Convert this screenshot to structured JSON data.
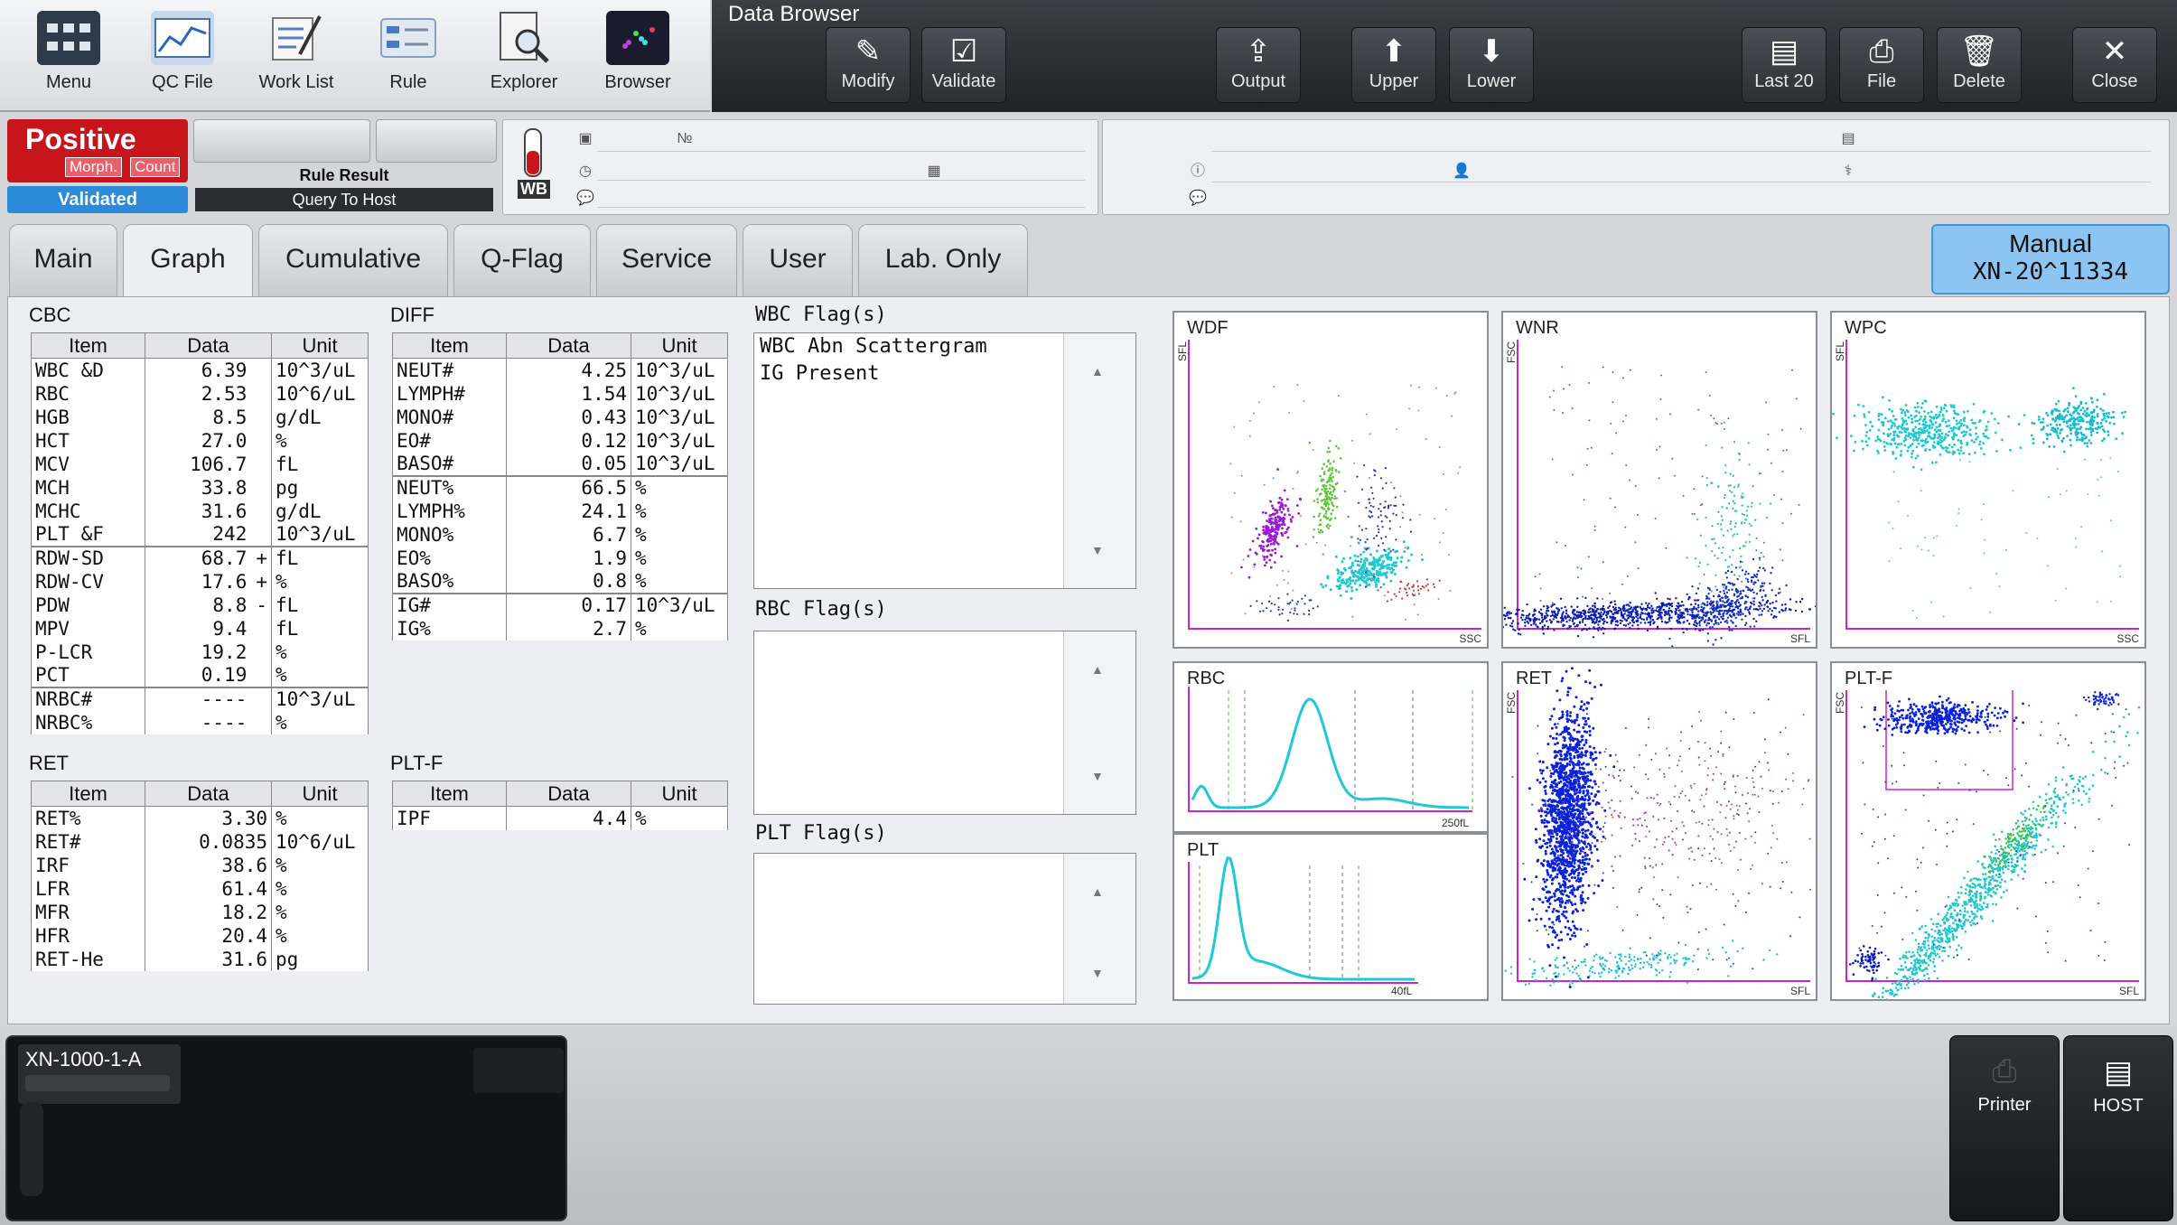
{
  "toolbar": {
    "items": [
      {
        "label": "Menu",
        "icon": "menu-grid-icon"
      },
      {
        "label": "QC File",
        "icon": "qc-chart-icon"
      },
      {
        "label": "Work List",
        "icon": "worklist-pen-icon"
      },
      {
        "label": "Rule",
        "icon": "rule-list-icon"
      },
      {
        "label": "Explorer",
        "icon": "explorer-magnifier-icon"
      },
      {
        "label": "Browser",
        "icon": "browser-scatter-icon"
      }
    ]
  },
  "browser": {
    "title": "Data Browser",
    "buttons": {
      "modify": "Modify",
      "validate": "Validate",
      "output": "Output",
      "upper": "Upper",
      "lower": "Lower",
      "last20": "Last 20",
      "file": "File",
      "delete": "Delete",
      "close": "Close"
    }
  },
  "status": {
    "result": "Positive",
    "morph": "Morph.",
    "count": "Count",
    "validated": "Validated",
    "rule_result": "Rule Result",
    "query_host": "Query To Host",
    "sample_type": "WB"
  },
  "tabs": [
    "Main",
    "Graph",
    "Cumulative",
    "Q-Flag",
    "Service",
    "User",
    "Lab. Only"
  ],
  "mode": {
    "line1": "Manual",
    "line2": "XN-20^11334"
  },
  "cbc": {
    "title": "CBC",
    "headers": [
      "Item",
      "Data",
      "Unit"
    ],
    "rows": [
      {
        "item": "WBC &D",
        "data": "6.39",
        "flag": " ",
        "unit": "10^3/uL"
      },
      {
        "item": "RBC",
        "data": "2.53",
        "flag": " ",
        "unit": "10^6/uL"
      },
      {
        "item": "HGB",
        "data": "8.5",
        "flag": " ",
        "unit": "g/dL"
      },
      {
        "item": "HCT",
        "data": "27.0",
        "flag": " ",
        "unit": "%"
      },
      {
        "item": "MCV",
        "data": "106.7",
        "flag": " ",
        "unit": "fL"
      },
      {
        "item": "MCH",
        "data": "33.8",
        "flag": " ",
        "unit": "pg"
      },
      {
        "item": "MCHC",
        "data": "31.6",
        "flag": " ",
        "unit": "g/dL"
      },
      {
        "item": "PLT &F",
        "data": "242",
        "flag": " ",
        "unit": "10^3/uL"
      },
      {
        "item": "RDW-SD",
        "data": "68.7",
        "flag": "+",
        "unit": "fL"
      },
      {
        "item": "RDW-CV",
        "data": "17.6",
        "flag": "+",
        "unit": "%"
      },
      {
        "item": "PDW",
        "data": "8.8",
        "flag": "-",
        "unit": "fL"
      },
      {
        "item": "MPV",
        "data": "9.4",
        "flag": " ",
        "unit": "fL"
      },
      {
        "item": "P-LCR",
        "data": "19.2",
        "flag": " ",
        "unit": "%"
      },
      {
        "item": "PCT",
        "data": "0.19",
        "flag": " ",
        "unit": "%"
      },
      {
        "item": "NRBC#",
        "data": "----",
        "flag": " ",
        "unit": "10^3/uL"
      },
      {
        "item": "NRBC%",
        "data": "----",
        "flag": " ",
        "unit": "%"
      }
    ]
  },
  "diff": {
    "title": "DIFF",
    "headers": [
      "Item",
      "Data",
      "Unit"
    ],
    "rows": [
      {
        "item": "NEUT#",
        "data": "4.25",
        "unit": "10^3/uL"
      },
      {
        "item": "LYMPH#",
        "data": "1.54",
        "unit": "10^3/uL"
      },
      {
        "item": "MONO#",
        "data": "0.43",
        "unit": "10^3/uL"
      },
      {
        "item": "EO#",
        "data": "0.12",
        "unit": "10^3/uL"
      },
      {
        "item": "BASO#",
        "data": "0.05",
        "unit": "10^3/uL"
      },
      {
        "item": "NEUT%",
        "data": "66.5",
        "unit": "%"
      },
      {
        "item": "LYMPH%",
        "data": "24.1",
        "unit": "%"
      },
      {
        "item": "MONO%",
        "data": "6.7",
        "unit": "%"
      },
      {
        "item": "EO%",
        "data": "1.9",
        "unit": "%"
      },
      {
        "item": "BASO%",
        "data": "0.8",
        "unit": "%"
      },
      {
        "item": "IG#",
        "data": "0.17",
        "unit": "10^3/uL"
      },
      {
        "item": "IG%",
        "data": "2.7",
        "unit": "%"
      }
    ]
  },
  "ret": {
    "title": "RET",
    "headers": [
      "Item",
      "Data",
      "Unit"
    ],
    "rows": [
      {
        "item": "RET%",
        "data": "3.30",
        "unit": "%"
      },
      {
        "item": "RET#",
        "data": "0.0835",
        "unit": "10^6/uL"
      },
      {
        "item": "IRF",
        "data": "38.6",
        "unit": "%"
      },
      {
        "item": "LFR",
        "data": "61.4",
        "unit": "%"
      },
      {
        "item": "MFR",
        "data": "18.2",
        "unit": "%"
      },
      {
        "item": "HFR",
        "data": "20.4",
        "unit": "%"
      },
      {
        "item": "RET-He",
        "data": "31.6",
        "unit": "pg"
      }
    ]
  },
  "pltf": {
    "title": "PLT-F",
    "headers": [
      "Item",
      "Data",
      "Unit"
    ],
    "rows": [
      {
        "item": "IPF",
        "data": "4.4",
        "unit": "%"
      }
    ]
  },
  "flags": {
    "wbc_title": "WBC Flag(s)",
    "wbc_lines": [
      "WBC Abn Scattergram",
      "IG Present"
    ],
    "rbc_title": "RBC Flag(s)",
    "plt_title": "PLT Flag(s)"
  },
  "plots": {
    "wdf": {
      "title": "WDF",
      "yaxis": "SFL",
      "xaxis": "SSC"
    },
    "wnr": {
      "title": "WNR",
      "yaxis": "FSC",
      "xaxis": "SFL"
    },
    "wpc": {
      "title": "WPC",
      "yaxis": "SFL",
      "xaxis": "SSC"
    },
    "rbc": {
      "title": "RBC",
      "xmax": "250fL"
    },
    "plt": {
      "title": "PLT",
      "xmax": "40fL"
    },
    "ret": {
      "title": "RET",
      "yaxis": "FSC",
      "xaxis": "SFL"
    },
    "pltf": {
      "title": "PLT-F",
      "yaxis": "FSC",
      "xaxis": "SFL"
    }
  },
  "bottom": {
    "device": "XN-1000-1-A",
    "printer": "Printer",
    "host": "HOST"
  }
}
